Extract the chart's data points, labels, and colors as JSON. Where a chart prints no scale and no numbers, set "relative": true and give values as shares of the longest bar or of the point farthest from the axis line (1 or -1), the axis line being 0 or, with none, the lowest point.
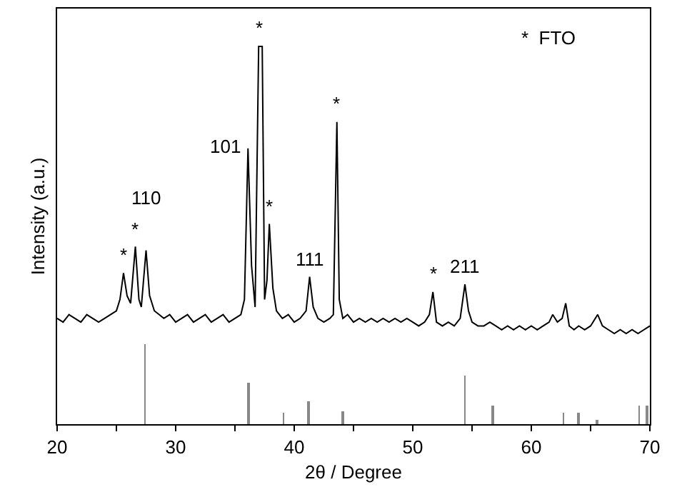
{
  "chart_data": {
    "type": "line",
    "relative": true,
    "xlabel": "2θ / Degree",
    "ylabel": "Intensity (a.u.)",
    "xlim": [
      20,
      70
    ],
    "xticks": [
      20,
      {
        "value": 25,
        "label": null
      },
      30,
      {
        "value": 35,
        "label": null
      },
      40,
      {
        "value": 45,
        "label": null
      },
      50,
      {
        "value": 55,
        "label": null
      },
      60,
      {
        "value": 65,
        "label": null
      },
      70
    ],
    "series": [
      {
        "color": "#000000",
        "x": [
          20,
          20.5,
          21,
          21.5,
          22,
          22.5,
          23,
          23.5,
          24,
          24.5,
          25,
          25.3,
          25.6,
          25.9,
          26.2,
          26.6,
          26.9,
          27.1,
          27.5,
          27.8,
          28.2,
          28.6,
          29,
          29.5,
          30,
          30.5,
          31,
          31.5,
          32,
          32.5,
          33,
          33.5,
          34,
          34.5,
          35,
          35.5,
          35.8,
          36.1,
          36.4,
          36.7,
          37.0,
          37.3,
          37.5,
          37.7,
          37.9,
          38.2,
          38.5,
          39,
          39.5,
          40,
          40.5,
          41,
          41.3,
          41.6,
          42,
          42.5,
          43,
          43.3,
          43.6,
          43.8,
          44.1,
          44.5,
          45,
          45.5,
          46,
          46.5,
          47,
          47.5,
          48,
          48.5,
          49,
          49.5,
          50,
          50.5,
          51,
          51.4,
          51.7,
          52,
          52.5,
          53,
          53.5,
          54,
          54.4,
          54.7,
          55,
          55.5,
          56,
          56.5,
          57,
          57.5,
          58,
          58.5,
          59,
          59.5,
          60,
          60.5,
          61,
          61.5,
          61.8,
          62.2,
          62.6,
          62.9,
          63.2,
          63.6,
          64,
          64.5,
          65,
          65.6,
          66,
          66.5,
          67,
          67.5,
          68,
          68.5,
          69,
          69.5,
          70
        ],
        "values": [
          0.28,
          0.27,
          0.29,
          0.28,
          0.27,
          0.29,
          0.28,
          0.27,
          0.28,
          0.29,
          0.3,
          0.33,
          0.4,
          0.34,
          0.32,
          0.47,
          0.33,
          0.31,
          0.46,
          0.34,
          0.3,
          0.29,
          0.28,
          0.29,
          0.27,
          0.28,
          0.29,
          0.27,
          0.28,
          0.29,
          0.27,
          0.28,
          0.29,
          0.27,
          0.28,
          0.29,
          0.33,
          0.73,
          0.42,
          0.31,
          1.0,
          1.0,
          0.33,
          0.38,
          0.53,
          0.36,
          0.3,
          0.28,
          0.29,
          0.27,
          0.28,
          0.3,
          0.39,
          0.31,
          0.28,
          0.27,
          0.28,
          0.29,
          0.8,
          0.33,
          0.28,
          0.29,
          0.27,
          0.28,
          0.27,
          0.28,
          0.27,
          0.28,
          0.27,
          0.28,
          0.27,
          0.28,
          0.27,
          0.26,
          0.27,
          0.29,
          0.35,
          0.27,
          0.26,
          0.27,
          0.26,
          0.28,
          0.37,
          0.3,
          0.27,
          0.26,
          0.26,
          0.27,
          0.26,
          0.25,
          0.26,
          0.25,
          0.26,
          0.25,
          0.26,
          0.25,
          0.26,
          0.27,
          0.29,
          0.27,
          0.28,
          0.32,
          0.26,
          0.25,
          0.26,
          0.25,
          0.26,
          0.29,
          0.26,
          0.25,
          0.24,
          0.25,
          0.24,
          0.25,
          0.24,
          0.25,
          0.26
        ]
      },
      {
        "type": "bar",
        "color": "#888888",
        "x": [
          27.4,
          36.1,
          39.1,
          41.2,
          44.1,
          54.4,
          56.7,
          62.7,
          64.0,
          65.5,
          69.1,
          69.8
        ],
        "values": [
          0.21,
          0.11,
          0.03,
          0.06,
          0.035,
          0.13,
          0.05,
          0.03,
          0.03,
          0.01,
          0.05,
          0.05
        ]
      }
    ],
    "annotations": [
      {
        "text": "*",
        "x": 25.6,
        "y": 0.4
      },
      {
        "text": "*",
        "x": 26.6,
        "y": 0.47
      },
      {
        "text": "110",
        "x": 27.5,
        "y": 0.46
      },
      {
        "text": "101",
        "x": 36.1,
        "y": 0.73
      },
      {
        "text": "*",
        "x": 37.0,
        "y": 1.0
      },
      {
        "text": "*",
        "x": 37.9,
        "y": 0.53
      },
      {
        "text": "111",
        "x": 41.3,
        "y": 0.39
      },
      {
        "text": "*",
        "x": 43.6,
        "y": 0.8
      },
      {
        "text": "*",
        "x": 51.7,
        "y": 0.35
      },
      {
        "text": "211",
        "x": 54.4,
        "y": 0.37
      },
      "*  FTO"
    ]
  }
}
